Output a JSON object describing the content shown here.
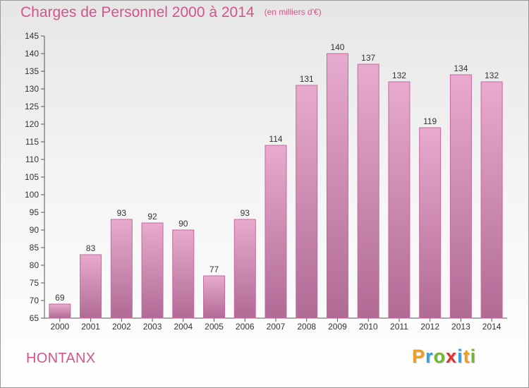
{
  "header": {
    "title": "Charges de Personnel 2000 à 2014",
    "subtitle": "(en milliers d'€)"
  },
  "footer": {
    "place": "HONTANX",
    "logo_letters": [
      {
        "ch": "P",
        "color": "#f0a020"
      },
      {
        "ch": "r",
        "color": "#3aa0d8"
      },
      {
        "ch": "o",
        "color": "#70b830"
      },
      {
        "ch": "x",
        "color": "#e03030"
      },
      {
        "ch": "i",
        "color": "#3aa0d8"
      },
      {
        "ch": "t",
        "color": "#f0a020"
      },
      {
        "ch": "i",
        "color": "#70b830"
      }
    ]
  },
  "chart_data": {
    "type": "bar",
    "title": "Charges de Personnel 2000 à 2014",
    "subtitle": "(en milliers d'€)",
    "categories": [
      "2000",
      "2001",
      "2002",
      "2003",
      "2004",
      "2005",
      "2006",
      "2007",
      "2008",
      "2009",
      "2010",
      "2011",
      "2012",
      "2013",
      "2014"
    ],
    "values": [
      69,
      83,
      93,
      92,
      90,
      77,
      93,
      114,
      131,
      140,
      137,
      132,
      119,
      134,
      132
    ],
    "ylim": [
      65,
      145
    ],
    "yticks": [
      65,
      70,
      75,
      80,
      85,
      90,
      95,
      100,
      105,
      110,
      115,
      120,
      125,
      130,
      135,
      140,
      145
    ],
    "grid": false,
    "bar_color_top": "#e8aace",
    "bar_color_bottom": "#b06b95",
    "bar_edge": "#c7689e"
  }
}
